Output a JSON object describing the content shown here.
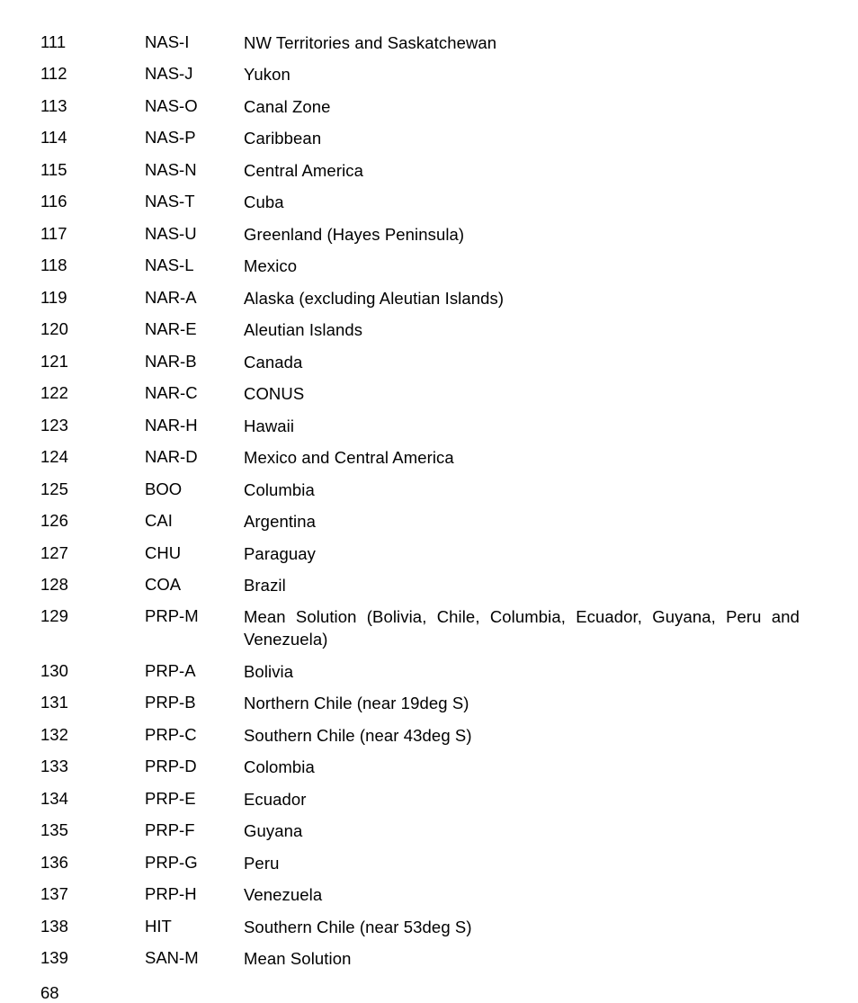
{
  "rows": [
    {
      "num": "111",
      "code": "NAS-I",
      "desc": "NW Territories and Saskatchewan"
    },
    {
      "num": "112",
      "code": "NAS-J",
      "desc": "Yukon"
    },
    {
      "num": "113",
      "code": "NAS-O",
      "desc": "Canal Zone"
    },
    {
      "num": "114",
      "code": "NAS-P",
      "desc": "Caribbean"
    },
    {
      "num": "115",
      "code": "NAS-N",
      "desc": "Central America"
    },
    {
      "num": "116",
      "code": "NAS-T",
      "desc": "Cuba"
    },
    {
      "num": "117",
      "code": "NAS-U",
      "desc": "Greenland (Hayes Peninsula)"
    },
    {
      "num": "118",
      "code": "NAS-L",
      "desc": "Mexico"
    },
    {
      "num": "119",
      "code": "NAR-A",
      "desc": "Alaska (excluding Aleutian Islands)"
    },
    {
      "num": "120",
      "code": "NAR-E",
      "desc": "Aleutian Islands"
    },
    {
      "num": "121",
      "code": "NAR-B",
      "desc": "Canada"
    },
    {
      "num": "122",
      "code": "NAR-C",
      "desc": "CONUS"
    },
    {
      "num": "123",
      "code": "NAR-H",
      "desc": "Hawaii"
    },
    {
      "num": "124",
      "code": "NAR-D",
      "desc": "Mexico and Central America"
    },
    {
      "num": "125",
      "code": "BOO",
      "desc": "Columbia"
    },
    {
      "num": "126",
      "code": "CAI",
      "desc": "Argentina"
    },
    {
      "num": "127",
      "code": "CHU",
      "desc": "Paraguay"
    },
    {
      "num": "128",
      "code": "COA",
      "desc": "Brazil"
    },
    {
      "num": "129",
      "code": "PRP-M",
      "desc": "Mean Solution (Bolivia, Chile, Columbia, Ecuador, Guyana, Peru and Venezuela)"
    },
    {
      "num": "130",
      "code": "PRP-A",
      "desc": "Bolivia"
    },
    {
      "num": "131",
      "code": "PRP-B",
      "desc": "Northern Chile (near 19deg S)"
    },
    {
      "num": "132",
      "code": "PRP-C",
      "desc": "Southern Chile (near 43deg S)"
    },
    {
      "num": "133",
      "code": "PRP-D",
      "desc": "Colombia"
    },
    {
      "num": "134",
      "code": "PRP-E",
      "desc": "Ecuador"
    },
    {
      "num": "135",
      "code": "PRP-F",
      "desc": "Guyana"
    },
    {
      "num": "136",
      "code": "PRP-G",
      "desc": "Peru"
    },
    {
      "num": "137",
      "code": "PRP-H",
      "desc": "Venezuela"
    },
    {
      "num": "138",
      "code": "HIT",
      "desc": "Southern Chile (near 53deg S)"
    },
    {
      "num": "139",
      "code": "SAN-M",
      "desc": "Mean Solution"
    }
  ],
  "page_number": "68"
}
